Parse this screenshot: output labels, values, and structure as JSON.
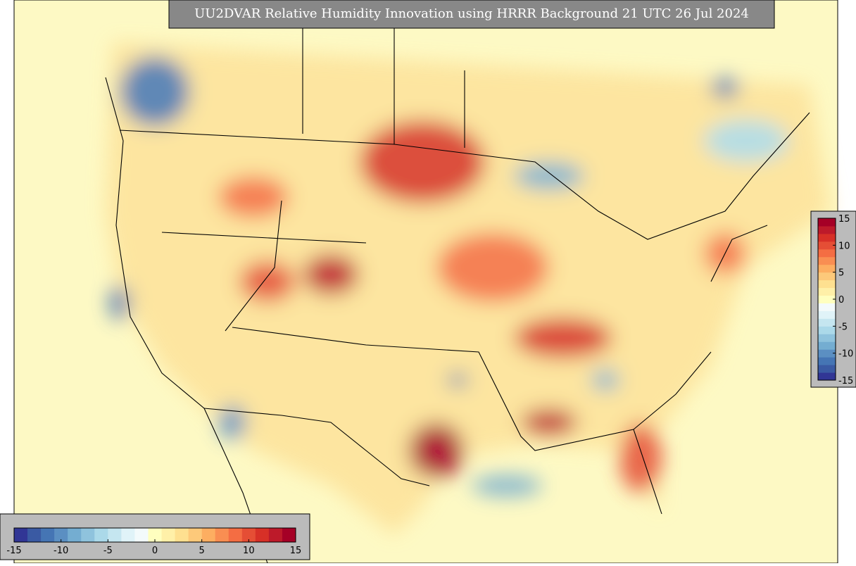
{
  "title": "UU2DVAR Relative Humidity Innovation using HRRR Background 21 UTC 26 Jul 2024",
  "colorbar": {
    "lim": [
      -15,
      15
    ],
    "ticks": [
      -15,
      -10,
      -5,
      0,
      5,
      10,
      15
    ],
    "colors": [
      "#313695",
      "#3a5aa3",
      "#4575b4",
      "#5b8fc2",
      "#74add1",
      "#8fc3dd",
      "#abd9e9",
      "#c5e6f0",
      "#e0f3f8",
      "#f3fafb",
      "#ffffbf",
      "#fff0a8",
      "#fee090",
      "#fdc97a",
      "#fdae61",
      "#f98e52",
      "#f46d43",
      "#e54e35",
      "#d73027",
      "#bd1a2a",
      "#a50026"
    ]
  }
}
